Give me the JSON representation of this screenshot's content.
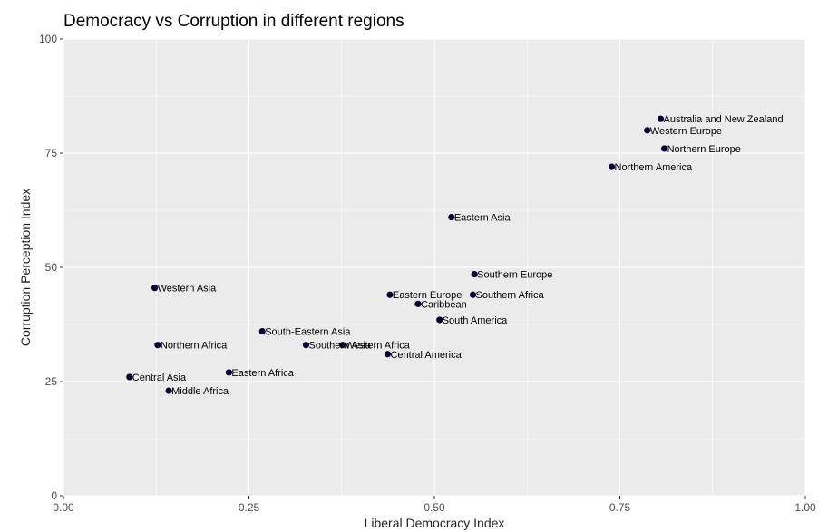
{
  "chart_data": {
    "type": "scatter",
    "title": "Democracy vs Corruption in different regions",
    "xlabel": "Liberal Democracy Index",
    "ylabel": "Corruption Perception Index",
    "xlim": [
      0,
      1
    ],
    "ylim": [
      0,
      100
    ],
    "x_ticks": [
      0.0,
      0.25,
      0.5,
      0.75,
      1.0
    ],
    "x_tick_labels": [
      "0.00",
      "0.25",
      "0.50",
      "0.75",
      "1.00"
    ],
    "y_ticks": [
      0,
      25,
      50,
      75,
      100
    ],
    "y_tick_labels": [
      "0",
      "25",
      "50",
      "75",
      "100"
    ],
    "grid": true,
    "panel_background": "#ebebeb",
    "grid_color": "#ffffff",
    "point_color": "#000033",
    "points": [
      {
        "label": "Australia and New Zealand",
        "x": 0.805,
        "y": 82.5
      },
      {
        "label": "Western Europe",
        "x": 0.787,
        "y": 80.0
      },
      {
        "label": "Northern Europe",
        "x": 0.81,
        "y": 76.0
      },
      {
        "label": "Northern America",
        "x": 0.739,
        "y": 72.0
      },
      {
        "label": "Eastern Asia",
        "x": 0.523,
        "y": 61.0
      },
      {
        "label": "Southern Europe",
        "x": 0.554,
        "y": 48.5
      },
      {
        "label": "Western Asia",
        "x": 0.123,
        "y": 45.5
      },
      {
        "label": "Eastern Europe",
        "x": 0.44,
        "y": 44.0
      },
      {
        "label": "Southern Africa",
        "x": 0.552,
        "y": 44.0
      },
      {
        "label": "Caribbean",
        "x": 0.478,
        "y": 42.0
      },
      {
        "label": "South America",
        "x": 0.507,
        "y": 38.5
      },
      {
        "label": "South-Eastern Asia",
        "x": 0.268,
        "y": 36.0
      },
      {
        "label": "Northern Africa",
        "x": 0.127,
        "y": 33.0
      },
      {
        "label": "Southern Asia",
        "x": 0.327,
        "y": 33.0
      },
      {
        "label": "Western Africa",
        "x": 0.376,
        "y": 33.0
      },
      {
        "label": "Central America",
        "x": 0.437,
        "y": 31.0
      },
      {
        "label": "Eastern Africa",
        "x": 0.223,
        "y": 27.0
      },
      {
        "label": "Central Asia",
        "x": 0.089,
        "y": 26.0
      },
      {
        "label": "Middle Africa",
        "x": 0.142,
        "y": 23.0
      }
    ]
  }
}
